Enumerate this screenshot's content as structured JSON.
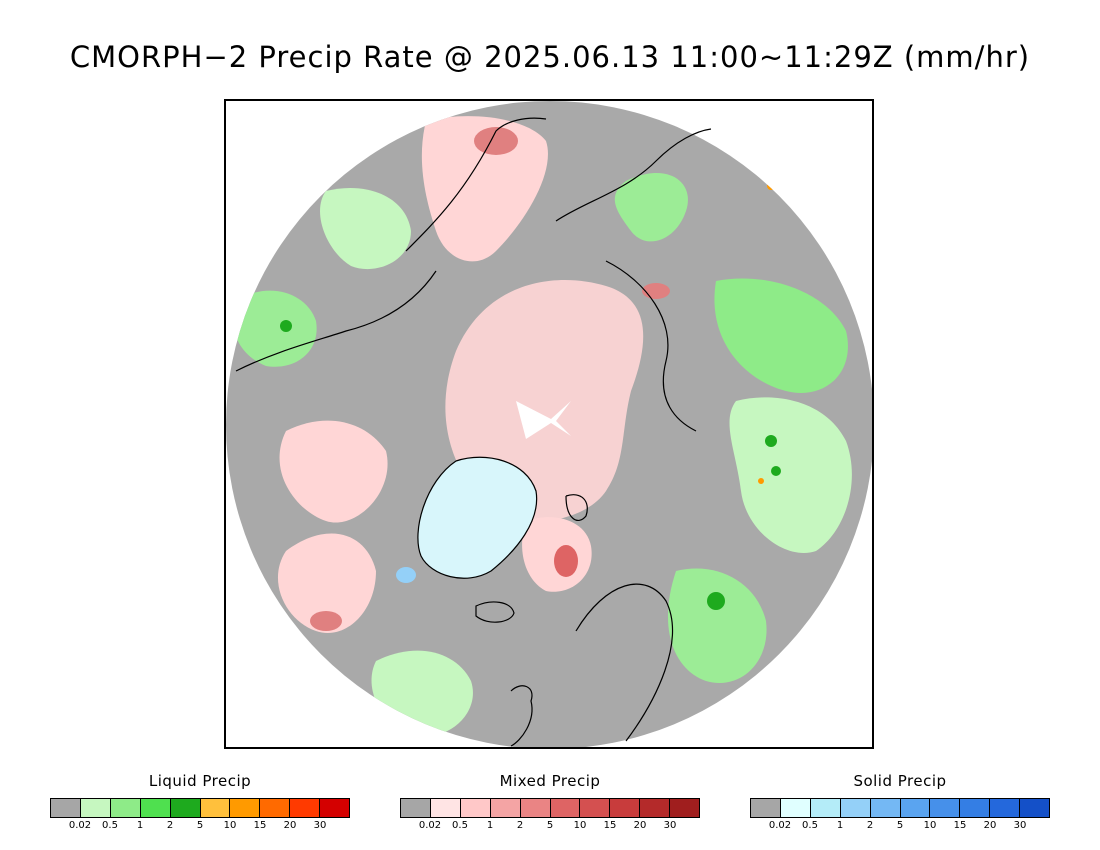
{
  "title": "CMORPH−2 Precip Rate @ 2025.06.13 11:00~11:29Z (mm/hr)",
  "map": {
    "projection": "north-polar-stereographic",
    "background_color": "#a9a9a9",
    "coastline_color": "#000000"
  },
  "legends": [
    {
      "title": "Liquid Precip",
      "colors": [
        "#a6a6a6",
        "#c6f7c0",
        "#8eeb88",
        "#4fe04f",
        "#1eaa1e",
        "#ffc03c",
        "#ff9a00",
        "#ff6a00",
        "#ff3a00",
        "#d40000"
      ],
      "ticks": [
        "0.02",
        "0.5",
        "1",
        "2",
        "5",
        "10",
        "15",
        "20",
        "30"
      ]
    },
    {
      "title": "Mixed Precip",
      "colors": [
        "#a6a6a6",
        "#ffe4e4",
        "#ffc8c8",
        "#f4a4a4",
        "#ea8484",
        "#de6464",
        "#d45050",
        "#c83c3c",
        "#b42a2a",
        "#a01e1e"
      ],
      "ticks": [
        "0.02",
        "0.5",
        "1",
        "2",
        "5",
        "10",
        "15",
        "20",
        "30"
      ]
    },
    {
      "title": "Solid Precip",
      "colors": [
        "#a6a6a6",
        "#e0ffff",
        "#b4ecf8",
        "#94d0f8",
        "#74b8f4",
        "#5aa4f0",
        "#4690ea",
        "#347ee4",
        "#2468dc",
        "#1450c8"
      ],
      "ticks": [
        "0.02",
        "0.5",
        "1",
        "2",
        "5",
        "10",
        "15",
        "20",
        "30"
      ]
    }
  ]
}
